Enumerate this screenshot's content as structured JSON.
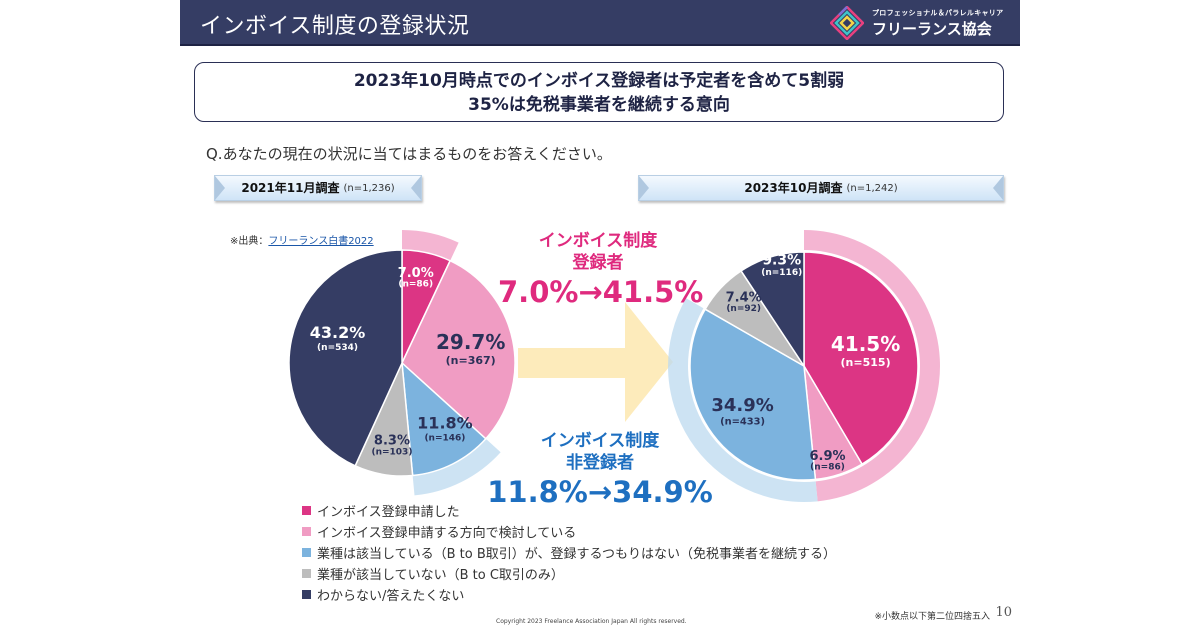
{
  "header": {
    "title": "インボイス制度の登録状況",
    "logo_subtitle": "プロフェッショナル＆パラレルキャリア",
    "logo_name": "フリーランス協会",
    "background_color": "#353d64"
  },
  "headline": {
    "line1": "2023年10月時点でのインボイス登録者は予定者を含めて5割弱",
    "line2": "35%は免税事業者を継続する意向"
  },
  "question": "Q.あなたの現在の状況に当てはまるものをお答えください。",
  "surveys": [
    {
      "label": "2021年11月調査",
      "n": "(n=1,236)"
    },
    {
      "label": "2023年10月調査",
      "n": "(n=1,242)"
    }
  ],
  "source": {
    "prefix": "※出典：",
    "link_text": "フリーランス白書2022"
  },
  "callouts": {
    "registered": {
      "title1": "インボイス制度",
      "title2": "登録者",
      "value": "7.0%→41.5%",
      "color": "#df2a7e"
    },
    "non_registered": {
      "title1": "インボイス制度",
      "title2": "非登録者",
      "value": "11.8%→34.9%",
      "color": "#1e6fc0"
    }
  },
  "legend": [
    {
      "label": "インボイス登録申請した",
      "color": "#dc3584"
    },
    {
      "label": "インボイス登録申請する方向で検討している",
      "color": "#f09cc3"
    },
    {
      "label": "業種は該当している（B to B取引）が、登録するつもりはない（免税事業者を継続する）",
      "color": "#7cb3de"
    },
    {
      "label": "業種が該当していない（B to C取引のみ）",
      "color": "#bdbdbd"
    },
    {
      "label": "わからない/答えたくない",
      "color": "#353d64"
    }
  ],
  "footer": {
    "note": "※小数点以下第二位四捨五入",
    "page": "10",
    "copyright": "Copyright 2023 Freelance Association Japan  All rights reserved."
  },
  "chart_data": [
    {
      "type": "pie",
      "title": "2021年11月調査 (n=1,236)",
      "categories": [
        "インボイス登録申請した",
        "インボイス登録申請する方向で検討している",
        "業種は該当している（B to B取引）が、登録するつもりはない（免税事業者を継続する）",
        "業種が該当していない（B to C取引のみ）",
        "わからない/答えたくない"
      ],
      "values": [
        7.0,
        29.7,
        11.8,
        8.3,
        43.2
      ],
      "counts": [
        86,
        367,
        146,
        103,
        534
      ],
      "labels": [
        "7.0%",
        "29.7%",
        "11.8%",
        "8.3%",
        "43.2%"
      ],
      "count_labels": [
        "(n=86)",
        "(n=367)",
        "(n=146)",
        "(n=103)",
        "(n=534)"
      ],
      "colors": [
        "#dc3584",
        "#f09cc3",
        "#7cb3de",
        "#bdbdbd",
        "#353d64"
      ],
      "highlight_rings": [
        {
          "categories": [
            0
          ],
          "color": "#f09cc3"
        },
        {
          "categories": [
            2
          ],
          "color": "#bcd9ef"
        }
      ]
    },
    {
      "type": "pie",
      "title": "2023年10月調査 (n=1,242)",
      "categories": [
        "インボイス登録申請した",
        "インボイス登録申請する方向で検討している",
        "業種は該当している（B to B取引）が、登録するつもりはない（免税事業者を継続する）",
        "業種が該当していない（B to C取引のみ）",
        "わからない/答えたくない"
      ],
      "values": [
        41.5,
        6.9,
        34.9,
        7.4,
        9.3
      ],
      "counts": [
        515,
        86,
        433,
        92,
        116
      ],
      "labels": [
        "41.5%",
        "6.9%",
        "34.9%",
        "7.4%",
        "9.3%"
      ],
      "count_labels": [
        "(n=515)",
        "(n=86)",
        "(n=433)",
        "(n=92)",
        "(n=116)"
      ],
      "colors": [
        "#dc3584",
        "#f09cc3",
        "#7cb3de",
        "#bdbdbd",
        "#353d64"
      ],
      "highlight_rings": [
        {
          "categories": [
            0,
            1
          ],
          "color": "#f09cc3"
        },
        {
          "categories": [
            2
          ],
          "color": "#bcd9ef"
        }
      ]
    }
  ]
}
